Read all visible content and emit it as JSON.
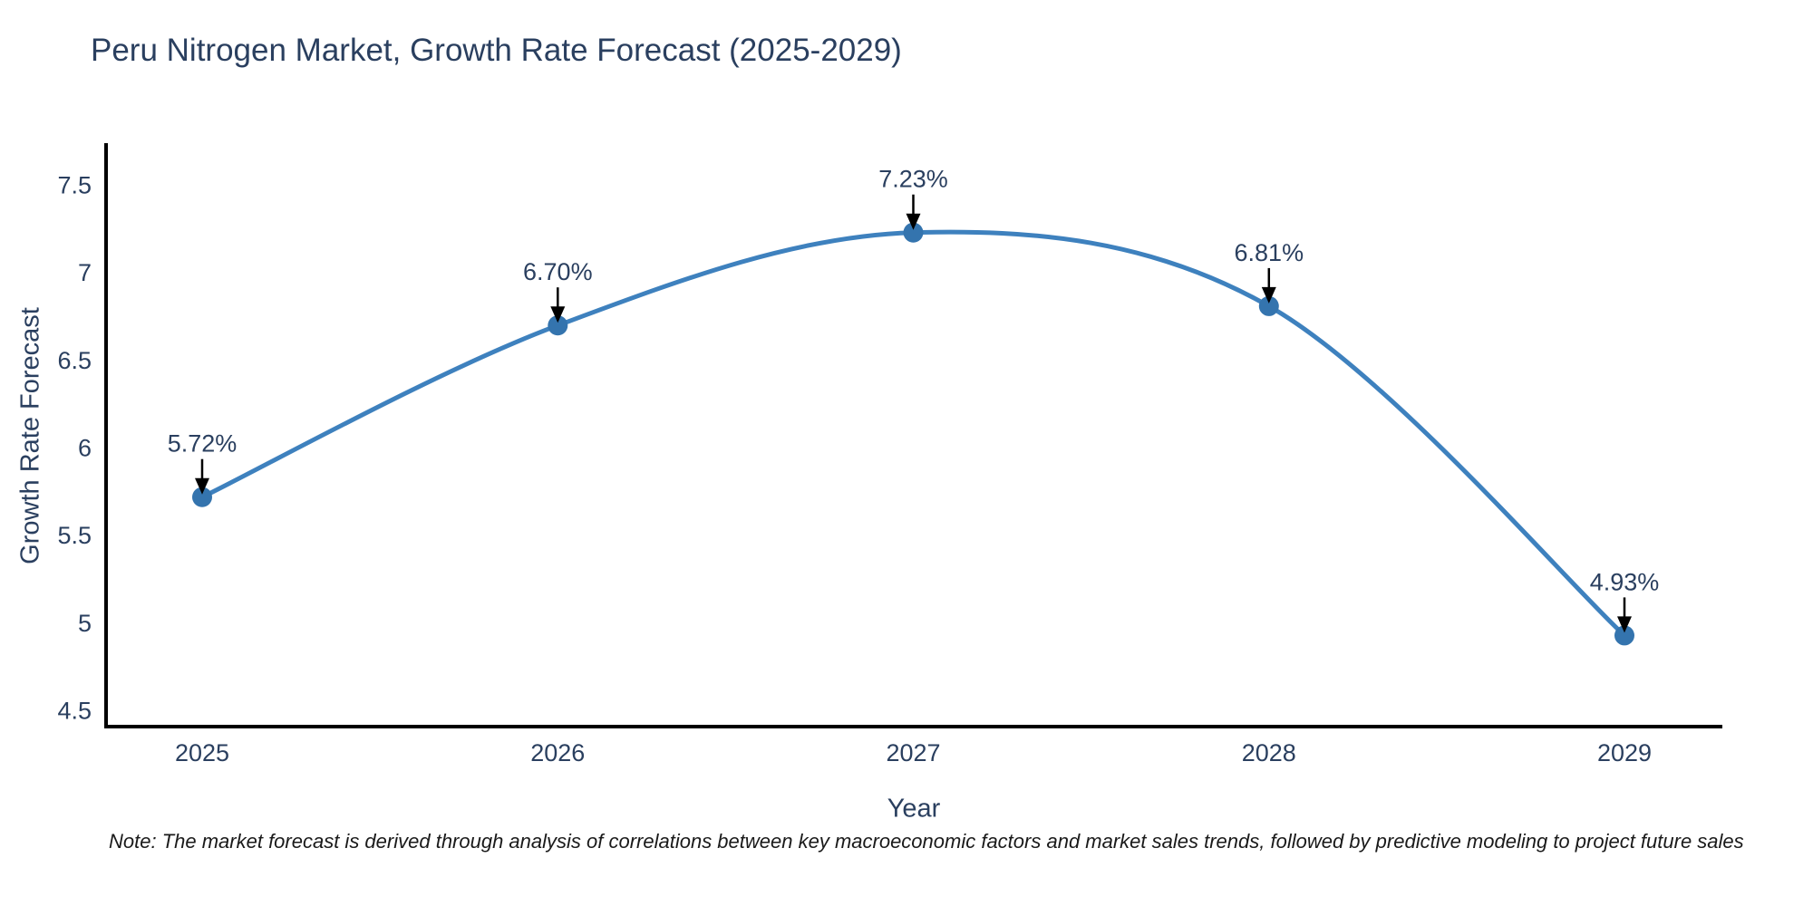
{
  "header": {
    "title": "Peru Nitrogen Market, Growth Rate Forecast (2025-2029)"
  },
  "chart_data": {
    "type": "line",
    "line_shape": "spline",
    "title": "Peru Nitrogen Market, Growth Rate Forecast (2025-2029)",
    "x": [
      "2025",
      "2026",
      "2027",
      "2028",
      "2029"
    ],
    "series": [
      {
        "name": "Growth Rate Forecast",
        "values": [
          5.72,
          6.7,
          7.23,
          6.81,
          4.93
        ]
      }
    ],
    "point_labels": [
      "5.72%",
      "6.70%",
      "7.23%",
      "6.81%",
      "4.93%"
    ],
    "xlabel": "Year",
    "ylabel": "Growth Rate Forecast",
    "ylim": [
      4.41,
      7.73
    ],
    "yticks": [
      4.5,
      5,
      5.5,
      6,
      6.5,
      7,
      7.5
    ],
    "ytick_labels": [
      "4.5",
      "5",
      "5.5",
      "6",
      "6.5",
      "7",
      "7.5"
    ],
    "grid": false,
    "legend": "none",
    "colors": {
      "line": "#3e81be",
      "marker": "#3474ae",
      "axis": "#000000",
      "arrow": "#000000",
      "text": "#2a3f5f"
    }
  },
  "footnote": {
    "text": "Note: The market forecast is derived through analysis of correlations between key macroeconomic factors and market sales trends, followed by predictive modeling to project future sales"
  }
}
